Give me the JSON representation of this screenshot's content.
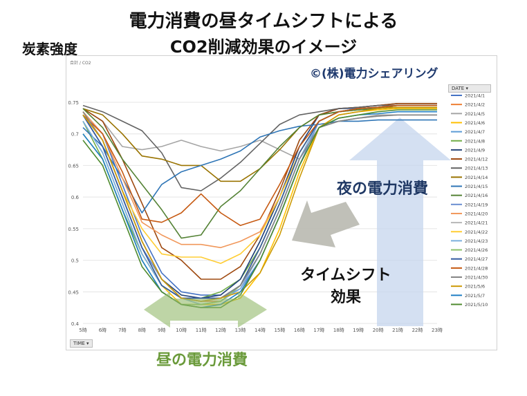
{
  "header": {
    "title_line1": "電力消費の昼タイムシフトによる",
    "title_line2": "CO2削減効果のイメージ",
    "ylabel": "炭素強度"
  },
  "annotations": {
    "copyright": "©(株)電力シェアリング",
    "night": "夜の電力消費",
    "shift_line1": "タイムシフト",
    "shift_line2": "効果",
    "day": "昼の電力消費"
  },
  "controls": {
    "corner_label": "合計 / CO2",
    "legend_button": "DATE",
    "time_button": "TIME"
  },
  "colors": {
    "up_arrow": "#c5d6ee",
    "down_arrow": "#b9b9b0",
    "day_arrow": "#93b96a"
  },
  "chart_data": {
    "type": "line",
    "x": [
      "5時",
      "6時",
      "7時",
      "8時",
      "9時",
      "10時",
      "11時",
      "12時",
      "13時",
      "14時",
      "15時",
      "16時",
      "17時",
      "18時",
      "19時",
      "20時",
      "21時",
      "22時",
      "23時"
    ],
    "yticks": [
      "0.4",
      "0.45",
      "0.5",
      "0.55",
      "0.6",
      "0.65",
      "0.7",
      "0.75"
    ],
    "ylim": [
      0.4,
      0.75
    ],
    "grid": true,
    "legend_position": "right",
    "series": [
      {
        "name": "2021/4/1",
        "color": "#4472c4",
        "values": [
          0.735,
          0.7,
          0.62,
          0.54,
          0.48,
          0.45,
          0.445,
          0.445,
          0.47,
          0.53,
          0.6,
          0.68,
          0.73,
          0.74,
          0.74,
          0.742,
          0.745,
          0.745,
          0.745
        ]
      },
      {
        "name": "2021/4/2",
        "color": "#ed7d31",
        "values": [
          0.735,
          0.69,
          0.61,
          0.53,
          0.47,
          0.44,
          0.435,
          0.435,
          0.46,
          0.52,
          0.59,
          0.67,
          0.72,
          0.735,
          0.738,
          0.74,
          0.742,
          0.742,
          0.742
        ]
      },
      {
        "name": "2021/4/5",
        "color": "#a5a5a5",
        "values": [
          0.74,
          0.72,
          0.68,
          0.675,
          0.68,
          0.69,
          0.68,
          0.673,
          0.68,
          0.69,
          0.675,
          0.66,
          0.71,
          0.72,
          0.725,
          0.73,
          0.73,
          0.73,
          0.73
        ]
      },
      {
        "name": "2021/4/6",
        "color": "#ffc000",
        "values": [
          0.73,
          0.68,
          0.6,
          0.52,
          0.46,
          0.43,
          0.43,
          0.43,
          0.44,
          0.48,
          0.55,
          0.64,
          0.71,
          0.73,
          0.735,
          0.738,
          0.74,
          0.74,
          0.74
        ]
      },
      {
        "name": "2021/4/7",
        "color": "#5b9bd5",
        "values": [
          0.72,
          0.67,
          0.59,
          0.51,
          0.46,
          0.44,
          0.44,
          0.44,
          0.46,
          0.51,
          0.58,
          0.66,
          0.72,
          0.735,
          0.74,
          0.742,
          0.742,
          0.742,
          0.742
        ]
      },
      {
        "name": "2021/4/8",
        "color": "#70ad47",
        "values": [
          0.72,
          0.66,
          0.58,
          0.51,
          0.46,
          0.44,
          0.44,
          0.45,
          0.47,
          0.52,
          0.59,
          0.67,
          0.72,
          0.735,
          0.738,
          0.74,
          0.742,
          0.742,
          0.742
        ]
      },
      {
        "name": "2021/4/9",
        "color": "#264478",
        "values": [
          0.73,
          0.68,
          0.6,
          0.52,
          0.47,
          0.445,
          0.44,
          0.445,
          0.47,
          0.53,
          0.6,
          0.68,
          0.73,
          0.74,
          0.742,
          0.745,
          0.748,
          0.748,
          0.748
        ]
      },
      {
        "name": "2021/4/12",
        "color": "#9e480e",
        "values": [
          0.74,
          0.72,
          0.66,
          0.59,
          0.52,
          0.5,
          0.47,
          0.47,
          0.49,
          0.54,
          0.61,
          0.69,
          0.73,
          0.74,
          0.742,
          0.745,
          0.748,
          0.748,
          0.748
        ]
      },
      {
        "name": "2021/4/13",
        "color": "#636363",
        "values": [
          0.745,
          0.735,
          0.72,
          0.705,
          0.67,
          0.615,
          0.61,
          0.63,
          0.655,
          0.685,
          0.715,
          0.73,
          0.735,
          0.74,
          0.742,
          0.745,
          0.745,
          0.745,
          0.745
        ]
      },
      {
        "name": "2021/4/14",
        "color": "#997300",
        "values": [
          0.74,
          0.73,
          0.7,
          0.665,
          0.66,
          0.65,
          0.65,
          0.625,
          0.625,
          0.645,
          0.675,
          0.71,
          0.73,
          0.735,
          0.74,
          0.742,
          0.742,
          0.742,
          0.742
        ]
      },
      {
        "name": "2021/4/15",
        "color": "#2e75b6",
        "values": [
          0.71,
          0.68,
          0.63,
          0.575,
          0.62,
          0.64,
          0.65,
          0.66,
          0.673,
          0.695,
          0.705,
          0.712,
          0.715,
          0.72,
          0.72,
          0.722,
          0.722,
          0.722,
          0.722
        ]
      },
      {
        "name": "2021/4/16",
        "color": "#548235",
        "values": [
          0.74,
          0.71,
          0.66,
          0.62,
          0.58,
          0.535,
          0.54,
          0.585,
          0.61,
          0.645,
          0.68,
          0.71,
          0.73,
          0.735,
          0.738,
          0.74,
          0.742,
          0.742,
          0.742
        ]
      },
      {
        "name": "2021/4/19",
        "color": "#698ed0",
        "values": [
          0.73,
          0.68,
          0.6,
          0.52,
          0.47,
          0.44,
          0.44,
          0.44,
          0.455,
          0.5,
          0.57,
          0.65,
          0.72,
          0.735,
          0.74,
          0.742,
          0.745,
          0.745,
          0.745
        ]
      },
      {
        "name": "2021/4/20",
        "color": "#f1975a",
        "values": [
          0.735,
          0.7,
          0.63,
          0.56,
          0.54,
          0.525,
          0.525,
          0.52,
          0.53,
          0.545,
          0.6,
          0.67,
          0.72,
          0.735,
          0.74,
          0.742,
          0.745,
          0.745,
          0.745
        ]
      },
      {
        "name": "2021/4/21",
        "color": "#b7b7b7",
        "values": [
          0.735,
          0.69,
          0.61,
          0.53,
          0.47,
          0.44,
          0.435,
          0.44,
          0.46,
          0.51,
          0.58,
          0.66,
          0.71,
          0.72,
          0.725,
          0.728,
          0.73,
          0.73,
          0.73
        ]
      },
      {
        "name": "2021/4/22",
        "color": "#ffcd33",
        "values": [
          0.735,
          0.69,
          0.61,
          0.55,
          0.51,
          0.505,
          0.505,
          0.495,
          0.51,
          0.54,
          0.6,
          0.67,
          0.72,
          0.735,
          0.74,
          0.742,
          0.745,
          0.745,
          0.745
        ]
      },
      {
        "name": "2021/4/23",
        "color": "#7cafdd",
        "values": [
          0.72,
          0.67,
          0.59,
          0.51,
          0.46,
          0.44,
          0.43,
          0.435,
          0.455,
          0.51,
          0.58,
          0.66,
          0.72,
          0.735,
          0.74,
          0.742,
          0.745,
          0.745,
          0.745
        ]
      },
      {
        "name": "2021/4/26",
        "color": "#8cc168",
        "values": [
          0.7,
          0.66,
          0.58,
          0.5,
          0.45,
          0.43,
          0.43,
          0.435,
          0.46,
          0.52,
          0.59,
          0.67,
          0.72,
          0.735,
          0.74,
          0.742,
          0.745,
          0.745,
          0.745
        ]
      },
      {
        "name": "2021/4/27",
        "color": "#335aa1",
        "values": [
          0.73,
          0.68,
          0.6,
          0.52,
          0.46,
          0.44,
          0.44,
          0.44,
          0.46,
          0.52,
          0.59,
          0.67,
          0.72,
          0.735,
          0.74,
          0.742,
          0.745,
          0.745,
          0.745
        ]
      },
      {
        "name": "2021/4/28",
        "color": "#c65911",
        "values": [
          0.73,
          0.7,
          0.64,
          0.565,
          0.56,
          0.575,
          0.605,
          0.575,
          0.555,
          0.565,
          0.62,
          0.68,
          0.72,
          0.735,
          0.74,
          0.742,
          0.745,
          0.745,
          0.745
        ]
      },
      {
        "name": "2021/4/30",
        "color": "#848484",
        "values": [
          0.735,
          0.69,
          0.61,
          0.53,
          0.47,
          0.44,
          0.435,
          0.44,
          0.46,
          0.51,
          0.58,
          0.66,
          0.71,
          0.72,
          0.725,
          0.728,
          0.73,
          0.73,
          0.73
        ]
      },
      {
        "name": "2021/5/6",
        "color": "#cc9a06",
        "values": [
          0.73,
          0.69,
          0.61,
          0.53,
          0.47,
          0.44,
          0.435,
          0.44,
          0.45,
          0.48,
          0.54,
          0.63,
          0.71,
          0.73,
          0.735,
          0.74,
          0.742,
          0.742,
          0.742
        ]
      },
      {
        "name": "2021/5/7",
        "color": "#1f7fc4",
        "values": [
          0.7,
          0.66,
          0.58,
          0.5,
          0.45,
          0.43,
          0.425,
          0.43,
          0.45,
          0.5,
          0.57,
          0.65,
          0.71,
          0.725,
          0.73,
          0.732,
          0.735,
          0.735,
          0.735
        ]
      },
      {
        "name": "2021/5/10",
        "color": "#4e8a2e",
        "values": [
          0.69,
          0.65,
          0.57,
          0.49,
          0.45,
          0.43,
          0.425,
          0.425,
          0.445,
          0.5,
          0.57,
          0.65,
          0.71,
          0.725,
          0.73,
          0.735,
          0.738,
          0.738,
          0.738
        ]
      }
    ]
  }
}
